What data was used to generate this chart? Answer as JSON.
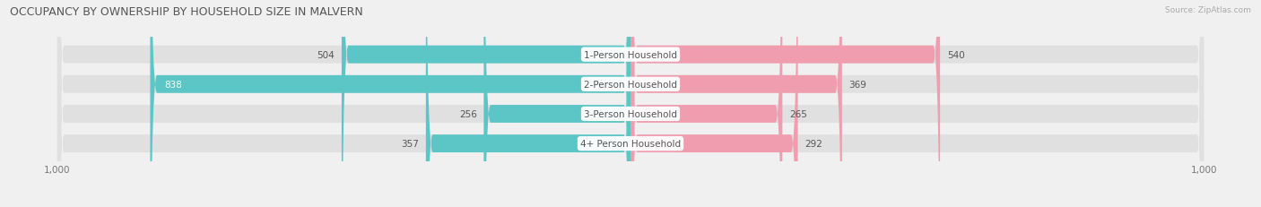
{
  "title": "OCCUPANCY BY OWNERSHIP BY HOUSEHOLD SIZE IN MALVERN",
  "source": "Source: ZipAtlas.com",
  "categories": [
    "1-Person Household",
    "2-Person Household",
    "3-Person Household",
    "4+ Person Household"
  ],
  "owner_values": [
    504,
    838,
    256,
    357
  ],
  "renter_values": [
    540,
    369,
    265,
    292
  ],
  "owner_color": "#5cc5c5",
  "renter_color": "#f09db0",
  "background_color": "#f0f0f0",
  "bar_bg_color": "#e0e0e0",
  "axis_max": 1000,
  "title_fontsize": 9.0,
  "label_fontsize": 7.5,
  "tick_fontsize": 7.5,
  "source_fontsize": 6.5
}
